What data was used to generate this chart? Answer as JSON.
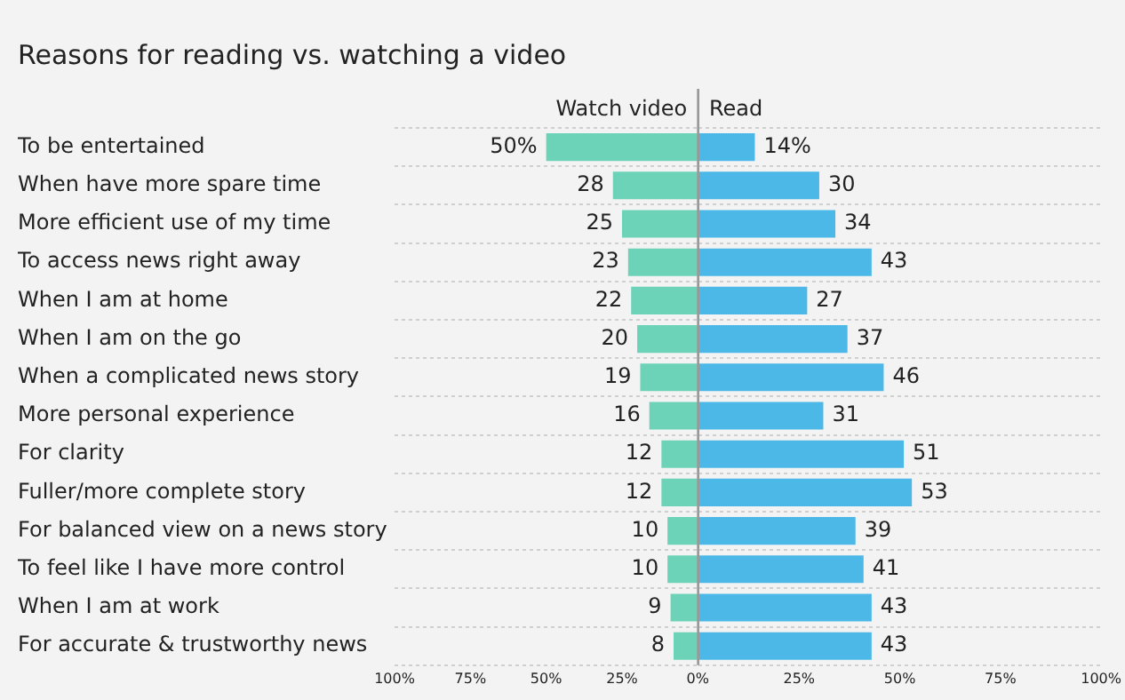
{
  "chart_data": [
    {
      "type": "bar",
      "orientation": "horizontal",
      "title": "Reasons for reading vs. watching a video",
      "categories": [
        "To be entertained",
        "When have more spare time",
        "More efficient use of my time",
        "To access news right away",
        "When I am at home",
        "When I am on the go",
        "When a complicated news story",
        "More personal experience",
        "For clarity",
        "Fuller/more complete story",
        "For balanced view on a news story",
        "To feel like I have more control",
        "When I am at work",
        "For accurate & trustworthy news"
      ],
      "series": [
        {
          "name": "Watch video",
          "color": "#6dd3b8",
          "values": [
            50,
            28,
            25,
            23,
            22,
            20,
            19,
            16,
            12,
            12,
            10,
            10,
            9,
            8
          ],
          "value_labels": [
            "50%",
            "28",
            "25",
            "23",
            "22",
            "20",
            "19",
            "16",
            "12",
            "12",
            "10",
            "10",
            "9",
            "8"
          ]
        }
      ],
      "xlim": [
        100,
        0
      ],
      "xticks": [
        {
          "value": 100,
          "label": "100%"
        },
        {
          "value": 75,
          "label": "75%"
        },
        {
          "value": 50,
          "label": "50%"
        },
        {
          "value": 25,
          "label": "25%"
        },
        {
          "value": 0,
          "label": "0%"
        }
      ],
      "grid": "y"
    },
    {
      "type": "bar",
      "orientation": "horizontal",
      "tick_labels": "x",
      "series": [
        {
          "name": "Read",
          "color": "#4bb8e8",
          "values": [
            14,
            30,
            34,
            43,
            27,
            37,
            46,
            31,
            51,
            53,
            39,
            41,
            43,
            43
          ],
          "value_labels": [
            "14%",
            "30",
            "34",
            "43",
            "27",
            "37",
            "46",
            "31",
            "51",
            "53",
            "39",
            "41",
            "43",
            "43"
          ]
        }
      ],
      "xlim": [
        0,
        100
      ],
      "xticks": [
        {
          "value": 25,
          "label": "25%"
        },
        {
          "value": 50,
          "label": "50%"
        },
        {
          "value": 75,
          "label": "75%"
        },
        {
          "value": 100,
          "label": "100%"
        }
      ],
      "grid": "y"
    }
  ]
}
